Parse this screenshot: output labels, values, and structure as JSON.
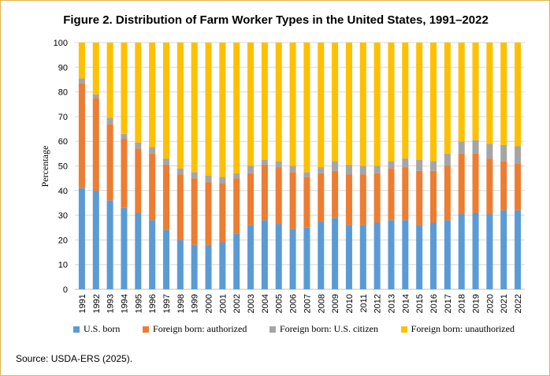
{
  "colors": {
    "us_born": "#5B9BD5",
    "authorized": "#ED7D31",
    "citizen": "#A5A5A5",
    "unauthorized": "#FFC000",
    "border": "#E3B24A",
    "grid": "#D9D9D9"
  },
  "source": "Source: USDA-ERS (2025).",
  "chart_data": {
    "type": "bar",
    "stacked": true,
    "title": "Figure 2. Distribution of Farm Worker Types in the United States, 1991–2022",
    "xlabel": "",
    "ylabel": "Percentage",
    "ylim": [
      0,
      100
    ],
    "yticks": [
      0,
      10,
      20,
      30,
      40,
      50,
      60,
      70,
      80,
      90,
      100
    ],
    "grid": true,
    "legend_position": "bottom",
    "categories": [
      "1991",
      "1992",
      "1993",
      "1994",
      "1995",
      "1996",
      "1997",
      "1998",
      "1999",
      "2000",
      "2001",
      "2002",
      "2003",
      "2004",
      "2005",
      "2006",
      "2007",
      "2008",
      "2009",
      "2010",
      "2011",
      "2012",
      "2013",
      "2014",
      "2015",
      "2016",
      "2017",
      "2018",
      "2019",
      "2020",
      "2021",
      "2022"
    ],
    "series": [
      {
        "name": "U.S. born",
        "color": "#5B9BD5",
        "values": [
          41,
          40,
          36,
          33,
          31,
          28,
          24,
          20,
          18,
          18,
          19,
          22.5,
          26,
          28,
          26.5,
          24.5,
          25,
          27.5,
          29,
          26,
          26,
          27,
          28,
          28,
          26,
          27,
          28,
          30.5,
          31,
          30.5,
          32,
          32
        ]
      },
      {
        "name": "Foreign born: authorized",
        "color": "#ED7D31",
        "values": [
          42.5,
          37.5,
          31,
          28,
          26,
          27,
          26.5,
          26.5,
          27,
          25.5,
          24,
          22.5,
          21,
          22.5,
          23,
          23,
          20.5,
          19.5,
          19,
          20.5,
          20.5,
          20,
          21,
          21.5,
          22,
          21,
          22,
          24.5,
          24,
          22.5,
          20,
          19
        ]
      },
      {
        "name": "Foreign born: U.S. citizen",
        "color": "#A5A5A5",
        "values": [
          2,
          1.5,
          2.5,
          2,
          2.5,
          2.5,
          2.5,
          2.5,
          2.5,
          2.5,
          2.5,
          2,
          3,
          2,
          2.5,
          2.5,
          2,
          2.5,
          4,
          4,
          3.5,
          3,
          3,
          3.5,
          4.5,
          4,
          5,
          5,
          5.5,
          6,
          6.5,
          7
        ]
      },
      {
        "name": "Foreign born: unauthorized",
        "color": "#FFC000",
        "values": [
          14.5,
          21,
          30.5,
          37,
          40.5,
          42.5,
          47,
          51,
          52.5,
          54,
          54.5,
          53,
          50,
          47.5,
          48,
          50,
          52.5,
          50.5,
          48,
          49.5,
          50,
          50,
          48,
          47,
          47.5,
          48,
          45,
          40,
          39.5,
          41,
          41.5,
          42
        ]
      }
    ]
  }
}
